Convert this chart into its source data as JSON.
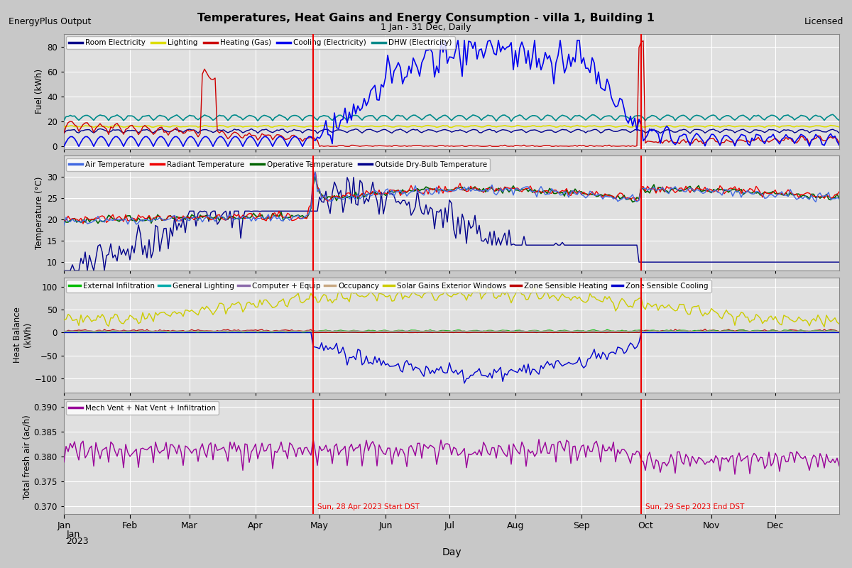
{
  "title": "Temperatures, Heat Gains and Energy Consumption - villa 1, Building 1",
  "subtitle": "1 Jan - 31 Dec, Daily",
  "left_label": "EnergyPlus Output",
  "right_label": "Licensed",
  "dst_start_label": "Sun, 28 Apr 2023 Start DST",
  "dst_end_label": "Sun, 29 Sep 2023 End DST",
  "dst_start_day": 117,
  "dst_end_day": 271,
  "x_tick_months": [
    0,
    31,
    59,
    90,
    120,
    151,
    181,
    212,
    243,
    273,
    304,
    334
  ],
  "x_tick_labels": [
    "Jan",
    "Feb",
    "Mar",
    "Apr",
    "May",
    "Jun",
    "Jul",
    "Aug",
    "Sep",
    "Oct",
    "Nov",
    "Dec"
  ],
  "panel1": {
    "ylabel": "Fuel (kWh)",
    "ylim": [
      -2,
      90
    ],
    "yticks": [
      0,
      20,
      40,
      60,
      80
    ],
    "legend": [
      "Room Electricity",
      "Lighting",
      "Heating (Gas)",
      "Cooling (Electricity)",
      "DHW (Electricity)"
    ],
    "colors": [
      "#00008B",
      "#DDDD00",
      "#CC0000",
      "#0000EE",
      "#008B8B"
    ]
  },
  "panel2": {
    "ylabel": "Temperature (°C)",
    "ylim": [
      8,
      35
    ],
    "yticks": [
      10,
      15,
      20,
      25,
      30
    ],
    "legend": [
      "Air Temperature",
      "Radiant Temperature",
      "Operative Temperature",
      "Outside Dry-Bulb Temperature"
    ],
    "colors": [
      "#4169E1",
      "#EE0000",
      "#006400",
      "#00008B"
    ]
  },
  "panel3": {
    "ylabel": "Heat Balance\n(kWh)",
    "ylim": [
      -130,
      120
    ],
    "yticks": [
      -100,
      -50,
      0,
      50,
      100
    ],
    "legend": [
      "External Infiltration",
      "General Lighting",
      "Computer + Equip",
      "Occupancy",
      "Solar Gains Exterior Windows",
      "Zone Sensible Heating",
      "Zone Sensible Cooling"
    ],
    "colors": [
      "#00BB00",
      "#00AAAA",
      "#8B6AAA",
      "#C8A882",
      "#CCCC00",
      "#BB0000",
      "#0000CC"
    ]
  },
  "panel4": {
    "ylabel": "Total fresh air (ac/h)",
    "ylim": [
      0.3685,
      0.3915
    ],
    "yticks": [
      0.37,
      0.375,
      0.38,
      0.385,
      0.39
    ],
    "legend": [
      "Mech Vent + Nat Vent + Infiltration"
    ],
    "colors": [
      "#990099"
    ]
  },
  "bg_color": "#C8C8C8",
  "plot_bg_color": "#E0E0E0",
  "grid_color": "#FFFFFF",
  "red_line_color": "#EE0000"
}
